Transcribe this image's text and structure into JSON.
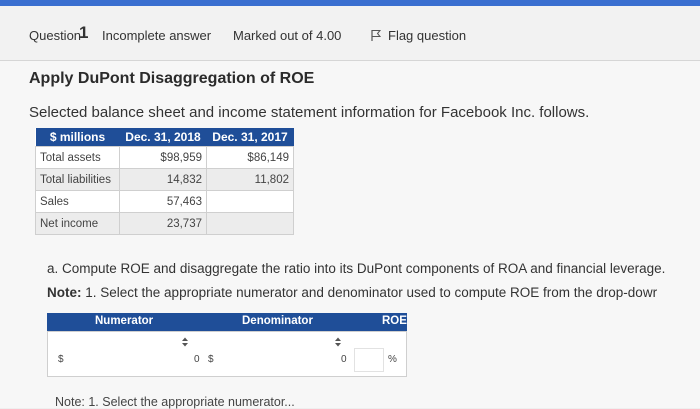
{
  "header": {
    "question_label": "Question",
    "question_number": "1",
    "status": "Incomplete answer",
    "marks": "Marked out of 4.00",
    "flag_label": "Flag question"
  },
  "content": {
    "title": "Apply DuPont Disaggregation of ROE",
    "intro": "Selected balance sheet and income statement information for Facebook Inc. follows.",
    "table": {
      "headers": [
        "$ millions",
        "Dec. 31, 2018",
        "Dec. 31, 2017"
      ],
      "rows": [
        {
          "label": "Total assets",
          "c2018": "$98,959",
          "c2017": "$86,149"
        },
        {
          "label": "Total liabilities",
          "c2018": "14,832",
          "c2017": "11,802"
        },
        {
          "label": "Sales",
          "c2018": "57,463",
          "c2017": ""
        },
        {
          "label": "Net income",
          "c2018": "23,737",
          "c2017": ""
        }
      ]
    },
    "part_a": "a. Compute ROE and disaggregate the ratio into its DuPont components of ROA and financial leverage.",
    "note_prefix": "Note:",
    "note_text": " 1. Select the appropriate numerator and denominator used to compute ROE from the drop-dowr",
    "roe_table": {
      "numerator_header": "Numerator",
      "denominator_header": "Denominator",
      "roe_header": "ROE",
      "numerator_currency": "$",
      "numerator_value": "0",
      "denominator_currency": "$",
      "denominator_value": "0",
      "percent_sign": "%"
    },
    "bottom_note": "Note: 1. Select the appropriate numerator..."
  }
}
